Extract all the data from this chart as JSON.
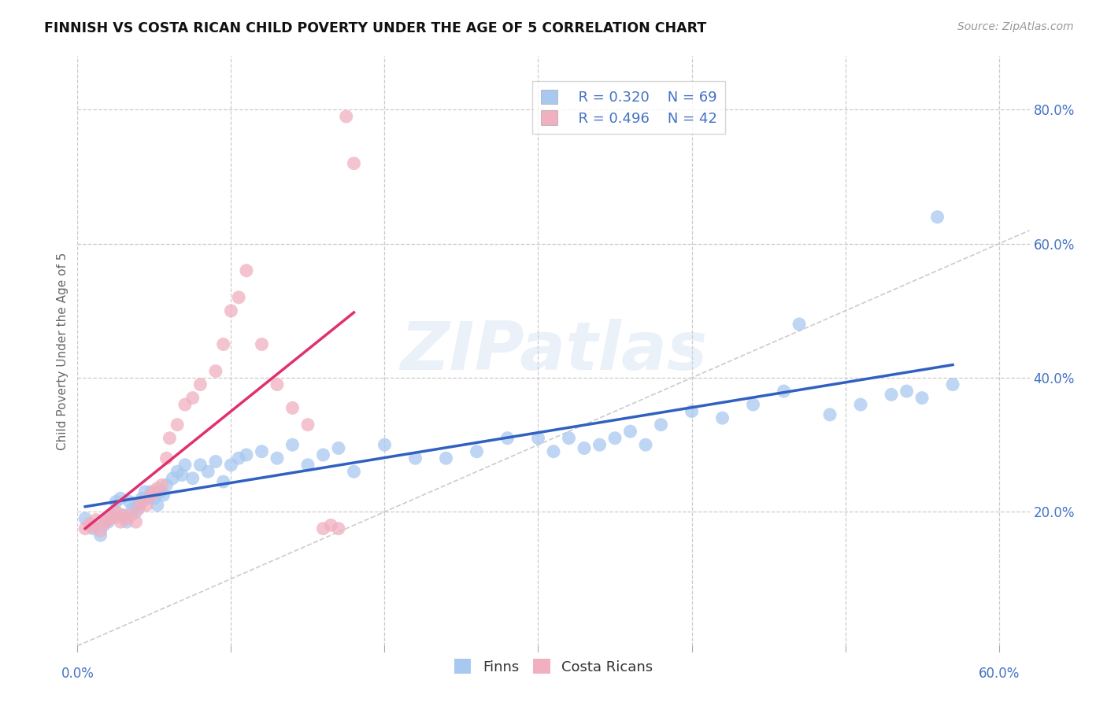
{
  "title": "FINNISH VS COSTA RICAN CHILD POVERTY UNDER THE AGE OF 5 CORRELATION CHART",
  "source": "Source: ZipAtlas.com",
  "ylabel": "Child Poverty Under the Age of 5",
  "xlim": [
    0.0,
    0.62
  ],
  "ylim": [
    0.0,
    0.88
  ],
  "yticks": [
    0.2,
    0.4,
    0.6,
    0.8
  ],
  "ytick_labels": [
    "20.0%",
    "40.0%",
    "60.0%",
    "80.0%"
  ],
  "xtick_left_label": "0.0%",
  "xtick_right_label": "60.0%",
  "grid_yticks": [
    0.2,
    0.4,
    0.6,
    0.8
  ],
  "grid_xticks": [
    0.0,
    0.1,
    0.2,
    0.3,
    0.4,
    0.5,
    0.6
  ],
  "background_color": "#ffffff",
  "grid_color": "#cccccc",
  "watermark_text": "ZIPatlas",
  "legend_r1": "R = 0.320",
  "legend_n1": "N = 69",
  "legend_r2": "R = 0.496",
  "legend_n2": "N = 42",
  "finn_color": "#a8c8f0",
  "costa_color": "#f0b0c0",
  "finn_line_color": "#3060c0",
  "costa_line_color": "#e03070",
  "diagonal_color": "#cccccc",
  "finn_scatter_x": [
    0.005,
    0.01,
    0.015,
    0.017,
    0.02,
    0.022,
    0.025,
    0.025,
    0.028,
    0.03,
    0.032,
    0.034,
    0.036,
    0.038,
    0.04,
    0.042,
    0.044,
    0.046,
    0.048,
    0.05,
    0.052,
    0.054,
    0.056,
    0.058,
    0.062,
    0.065,
    0.068,
    0.07,
    0.075,
    0.08,
    0.085,
    0.09,
    0.095,
    0.1,
    0.105,
    0.11,
    0.12,
    0.13,
    0.14,
    0.15,
    0.16,
    0.17,
    0.18,
    0.2,
    0.22,
    0.24,
    0.26,
    0.28,
    0.3,
    0.31,
    0.32,
    0.33,
    0.34,
    0.35,
    0.36,
    0.37,
    0.38,
    0.4,
    0.42,
    0.44,
    0.46,
    0.47,
    0.49,
    0.51,
    0.53,
    0.54,
    0.55,
    0.56,
    0.57
  ],
  "finn_scatter_y": [
    0.19,
    0.175,
    0.165,
    0.18,
    0.185,
    0.195,
    0.2,
    0.215,
    0.22,
    0.195,
    0.185,
    0.215,
    0.205,
    0.2,
    0.21,
    0.22,
    0.23,
    0.22,
    0.23,
    0.22,
    0.21,
    0.23,
    0.225,
    0.24,
    0.25,
    0.26,
    0.255,
    0.27,
    0.25,
    0.27,
    0.26,
    0.275,
    0.245,
    0.27,
    0.28,
    0.285,
    0.29,
    0.28,
    0.3,
    0.27,
    0.285,
    0.295,
    0.26,
    0.3,
    0.28,
    0.28,
    0.29,
    0.31,
    0.31,
    0.29,
    0.31,
    0.295,
    0.3,
    0.31,
    0.32,
    0.3,
    0.33,
    0.35,
    0.34,
    0.36,
    0.38,
    0.48,
    0.345,
    0.36,
    0.375,
    0.38,
    0.37,
    0.64,
    0.39
  ],
  "costa_scatter_x": [
    0.005,
    0.008,
    0.01,
    0.012,
    0.015,
    0.018,
    0.02,
    0.022,
    0.025,
    0.025,
    0.028,
    0.03,
    0.032,
    0.035,
    0.038,
    0.04,
    0.042,
    0.045,
    0.048,
    0.05,
    0.052,
    0.055,
    0.058,
    0.06,
    0.065,
    0.07,
    0.075,
    0.08,
    0.09,
    0.095,
    0.1,
    0.105,
    0.11,
    0.12,
    0.13,
    0.14,
    0.15,
    0.16,
    0.165,
    0.17,
    0.175,
    0.18
  ],
  "costa_scatter_y": [
    0.175,
    0.182,
    0.178,
    0.188,
    0.172,
    0.185,
    0.188,
    0.192,
    0.192,
    0.2,
    0.185,
    0.195,
    0.19,
    0.195,
    0.185,
    0.205,
    0.215,
    0.21,
    0.225,
    0.23,
    0.235,
    0.24,
    0.28,
    0.31,
    0.33,
    0.36,
    0.37,
    0.39,
    0.41,
    0.45,
    0.5,
    0.52,
    0.56,
    0.45,
    0.39,
    0.355,
    0.33,
    0.175,
    0.18,
    0.175,
    0.79,
    0.72
  ]
}
